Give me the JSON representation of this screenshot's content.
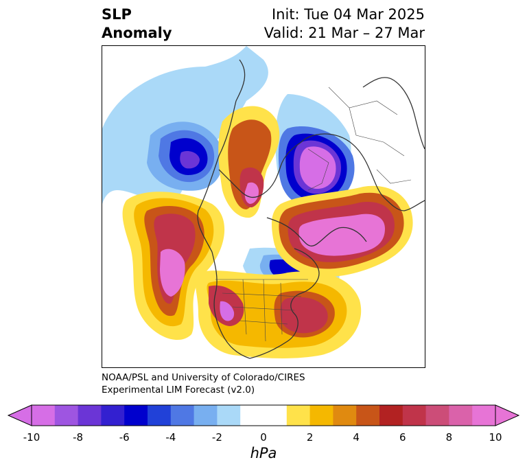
{
  "title": {
    "left_line1": "SLP",
    "left_line2": "Anomaly",
    "right_line1": "Init: Tue 04 Mar 2025",
    "right_line2": "Valid: 21 Mar – 27 Mar"
  },
  "credit": {
    "line1": "NOAA/PSL and University of Colorado/CIRES",
    "line2": "Experimental LIM Forecast (v2.0)"
  },
  "colorbar": {
    "unit": "hPa",
    "tick_labels": [
      "-10",
      "-8",
      "-6",
      "-4",
      "-2",
      "0",
      "2",
      "4",
      "6",
      "8",
      "10"
    ],
    "colors": [
      "#d66ee6",
      "#9e55e1",
      "#6b35d6",
      "#3320d0",
      "#0000cd",
      "#2141d8",
      "#4f78e4",
      "#78aff0",
      "#aad9f8",
      "#ffffff",
      "#ffffff",
      "#ffe24a",
      "#f5b800",
      "#e08a10",
      "#c85518",
      "#b22222",
      "#c0344a",
      "#cc4d78",
      "#da62aa",
      "#e774d6"
    ],
    "under_color": "#d66ee6",
    "over_color": "#e774d6"
  }
}
